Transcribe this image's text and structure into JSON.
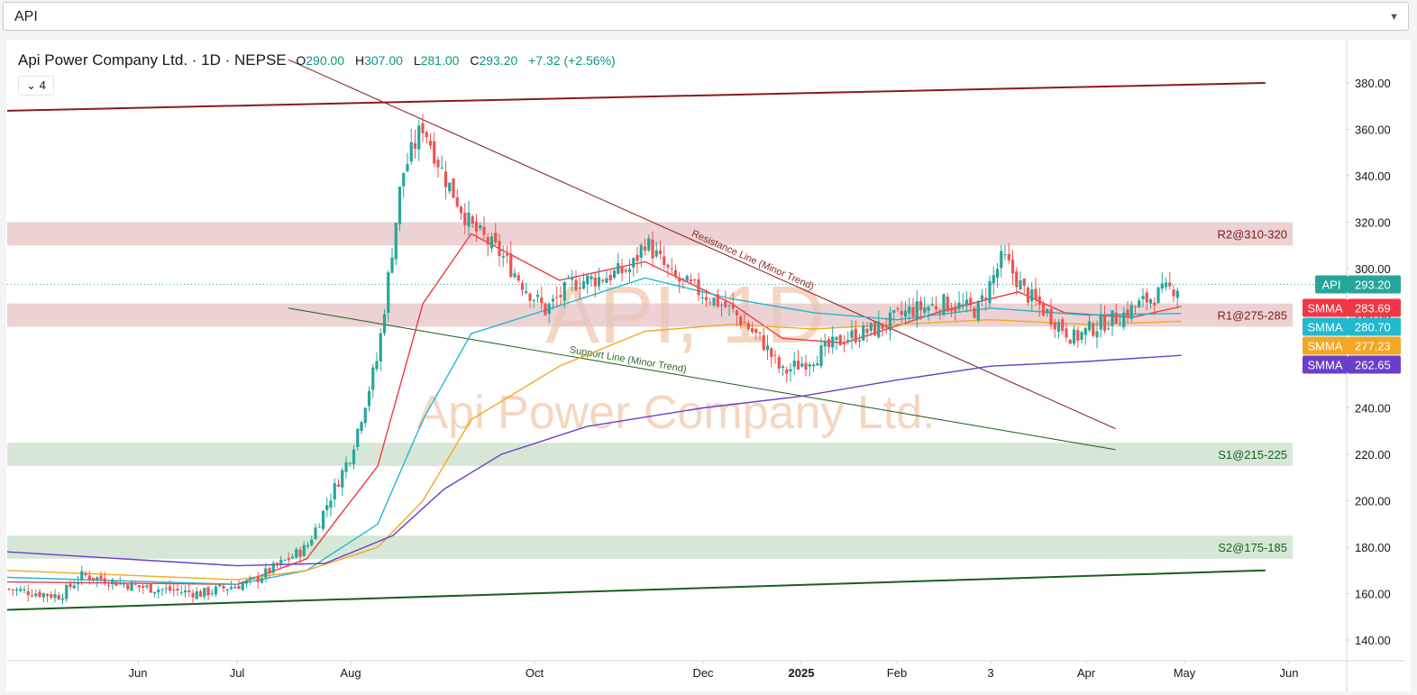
{
  "symbol_select": {
    "value": "API"
  },
  "legend": {
    "title": "Api Power Company Ltd. · 1D · NEPSE",
    "o_label": "O",
    "o": "290.00",
    "h_label": "H",
    "h": "307.00",
    "l_label": "L",
    "l": "281.00",
    "c_label": "C",
    "c": "293.20",
    "change": "+7.32 (+2.56%)",
    "indicator_count": "4",
    "collapse_icon": "chevron-down-icon"
  },
  "watermark": {
    "symbol": "API, 1D",
    "name": "Api Power Company Ltd."
  },
  "colors": {
    "up": "#26a69a",
    "down": "#ef5350",
    "sma_red": "#f23645",
    "sma_cyan": "#22b8cf",
    "sma_orange": "#f5a623",
    "sma_purple": "#6a3fc8",
    "resistance_zone": "#e6c3c3",
    "support_zone": "#c9dfca"
  },
  "chart_data": {
    "type": "candlestick",
    "symbol": "API",
    "exchange": "NEPSE",
    "interval": "1D",
    "ylim": [
      130,
      393
    ],
    "y_ticks": [
      "140.00",
      "160.00",
      "180.00",
      "200.00",
      "220.00",
      "240.00",
      "260.00",
      "280.00",
      "300.00",
      "320.00",
      "340.00",
      "360.00",
      "380.00"
    ],
    "x_ticks": [
      "Jun",
      "Jul",
      "Aug",
      "Oct",
      "Dec",
      "2025",
      "Feb",
      "3",
      "Apr",
      "May",
      "Jun"
    ],
    "last_price": {
      "symbol": "API",
      "value": "293.20"
    },
    "indicators": [
      {
        "name": "SMMA",
        "value": "283.69",
        "color": "#f23645"
      },
      {
        "name": "SMMA",
        "value": "280.70",
        "color": "#22b8cf"
      },
      {
        "name": "SMMA",
        "value": "277.23",
        "color": "#f5a623"
      },
      {
        "name": "SMMA",
        "value": "262.65",
        "color": "#6a3fc8"
      }
    ],
    "zones": [
      {
        "label": "R2@310-320",
        "low": 310,
        "high": 320,
        "kind": "resistance"
      },
      {
        "label": "R1@275-285",
        "low": 275,
        "high": 285,
        "kind": "resistance"
      },
      {
        "label": "S1@215-225",
        "low": 215,
        "high": 225,
        "kind": "support"
      },
      {
        "label": "S2@175-185",
        "low": 175,
        "high": 185,
        "kind": "support"
      }
    ],
    "trendlines": [
      {
        "label": "Resistance Line (Minor Trend)",
        "from": [
          "2024-07-15",
          390
        ],
        "to": [
          "2025-04-10",
          231
        ]
      },
      {
        "label": "Support Line (Minor Trend)",
        "from": [
          "2024-07-15",
          283
        ],
        "to": [
          "2025-04-10",
          222
        ]
      },
      {
        "label": "",
        "from": [
          "2024-04-10",
          368
        ],
        "to": [
          "2025-05-25",
          380
        ]
      },
      {
        "label": "",
        "from": [
          "2024-04-10",
          153
        ],
        "to": [
          "2025-05-25",
          170
        ]
      }
    ],
    "price_path": [
      [
        "2024-04-10",
        162
      ],
      [
        "2024-05-01",
        159
      ],
      [
        "2024-05-10",
        168
      ],
      [
        "2024-06-01",
        163
      ],
      [
        "2024-06-20",
        160
      ],
      [
        "2024-07-05",
        165
      ],
      [
        "2024-07-20",
        180
      ],
      [
        "2024-08-01",
        220
      ],
      [
        "2024-08-10",
        262
      ],
      [
        "2024-08-18",
        340
      ],
      [
        "2024-08-25",
        362
      ],
      [
        "2024-09-01",
        340
      ],
      [
        "2024-09-10",
        318
      ],
      [
        "2024-09-20",
        306
      ],
      [
        "2024-09-28",
        292
      ],
      [
        "2024-10-05",
        282
      ],
      [
        "2024-10-15",
        294
      ],
      [
        "2024-10-25",
        296
      ],
      [
        "2024-11-05",
        300
      ],
      [
        "2024-11-10",
        312
      ],
      [
        "2024-11-20",
        296
      ],
      [
        "2024-11-30",
        290
      ],
      [
        "2024-12-10",
        282
      ],
      [
        "2024-12-20",
        268
      ],
      [
        "2024-12-26",
        255
      ],
      [
        "2025-01-05",
        262
      ],
      [
        "2025-01-15",
        270
      ],
      [
        "2025-01-25",
        274
      ],
      [
        "2025-02-05",
        282
      ],
      [
        "2025-02-15",
        285
      ],
      [
        "2025-02-25",
        282
      ],
      [
        "2025-03-05",
        305
      ],
      [
        "2025-03-12",
        290
      ],
      [
        "2025-03-20",
        280
      ],
      [
        "2025-03-28",
        270
      ],
      [
        "2025-04-05",
        276
      ],
      [
        "2025-04-12",
        280
      ],
      [
        "2025-04-20",
        287
      ],
      [
        "2025-04-28",
        292
      ],
      [
        "2025-04-30",
        293.2
      ]
    ],
    "sma_series": [
      {
        "name": "SMMA",
        "color": "#f23645",
        "values": [
          [
            "2024-04-10",
            165
          ],
          [
            "2024-07-01",
            164
          ],
          [
            "2024-07-20",
            175
          ],
          [
            "2024-08-10",
            215
          ],
          [
            "2024-08-25",
            285
          ],
          [
            "2024-09-10",
            315
          ],
          [
            "2024-10-10",
            295
          ],
          [
            "2024-11-10",
            303
          ],
          [
            "2024-12-10",
            285
          ],
          [
            "2024-12-26",
            270
          ],
          [
            "2025-01-15",
            268
          ],
          [
            "2025-02-15",
            282
          ],
          [
            "2025-03-10",
            290
          ],
          [
            "2025-03-25",
            281
          ],
          [
            "2025-04-15",
            279
          ],
          [
            "2025-04-30",
            283.69
          ]
        ]
      },
      {
        "name": "SMMA",
        "color": "#22b8cf",
        "values": [
          [
            "2024-04-10",
            167
          ],
          [
            "2024-07-01",
            164
          ],
          [
            "2024-07-20",
            170
          ],
          [
            "2024-08-10",
            190
          ],
          [
            "2024-08-25",
            235
          ],
          [
            "2024-09-10",
            272
          ],
          [
            "2024-10-10",
            284
          ],
          [
            "2024-11-10",
            296
          ],
          [
            "2024-12-10",
            287
          ],
          [
            "2025-01-05",
            281
          ],
          [
            "2025-02-01",
            278
          ],
          [
            "2025-03-01",
            283
          ],
          [
            "2025-04-01",
            280
          ],
          [
            "2025-04-30",
            280.7
          ]
        ]
      },
      {
        "name": "SMMA",
        "color": "#f5a623",
        "values": [
          [
            "2024-04-10",
            170
          ],
          [
            "2024-07-01",
            166
          ],
          [
            "2024-07-20",
            170
          ],
          [
            "2024-08-10",
            180
          ],
          [
            "2024-08-25",
            200
          ],
          [
            "2024-09-10",
            235
          ],
          [
            "2024-10-10",
            258
          ],
          [
            "2024-11-10",
            273
          ],
          [
            "2024-12-10",
            276
          ],
          [
            "2025-01-05",
            274
          ],
          [
            "2025-02-01",
            276
          ],
          [
            "2025-03-01",
            278
          ],
          [
            "2025-04-01",
            276
          ],
          [
            "2025-04-30",
            277.23
          ]
        ]
      },
      {
        "name": "SMMA",
        "color": "#6a3fc8",
        "values": [
          [
            "2024-04-10",
            178
          ],
          [
            "2024-07-01",
            172
          ],
          [
            "2024-07-25",
            173
          ],
          [
            "2024-08-15",
            185
          ],
          [
            "2024-09-01",
            205
          ],
          [
            "2024-09-20",
            220
          ],
          [
            "2024-10-20",
            232
          ],
          [
            "2024-12-01",
            240
          ],
          [
            "2025-01-01",
            245
          ],
          [
            "2025-02-01",
            252
          ],
          [
            "2025-03-01",
            258
          ],
          [
            "2025-04-01",
            260
          ],
          [
            "2025-04-30",
            262.65
          ]
        ]
      }
    ]
  }
}
